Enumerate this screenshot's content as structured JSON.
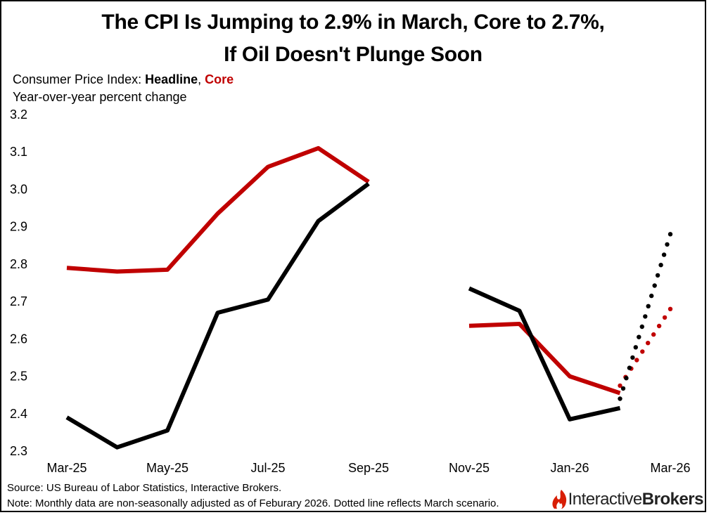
{
  "title_line1": "The CPI Is Jumping to 2.9% in March, Core to 2.7%,",
  "title_line2": "If Oil Doesn't Plunge Soon",
  "subtitle": {
    "prefix": "Consumer Price Index: ",
    "headline": "Headline",
    "comma": ", ",
    "core": "Core",
    "line2": "Year-over-year percent change"
  },
  "footer": {
    "source": "Source: US Bureau of Labor Statistics, Interactive Brokers.",
    "note": "Note: Monthly data are non-seasonally adjusted as of Feburary 2026. Dotted line reflects March scenario."
  },
  "logo": {
    "part1": "Interactive",
    "part2": "Brokers"
  },
  "colors": {
    "headline": "#000000",
    "core": "#c00000"
  },
  "chart_data": {
    "type": "line",
    "x": [
      "Mar-25",
      "Apr-25",
      "May-25",
      "Jun-25",
      "Jul-25",
      "Aug-25",
      "Sep-25",
      "Oct-25",
      "Nov-25",
      "Dec-25",
      "Jan-26",
      "Feb-26",
      "Mar-26"
    ],
    "x_tick_labels": [
      "Mar-25",
      "May-25",
      "Jul-25",
      "Sep-25",
      "Nov-25",
      "Jan-26",
      "Mar-26"
    ],
    "ylim": [
      2.3,
      3.2
    ],
    "y_ticks": [
      "2.3",
      "2.4",
      "2.5",
      "2.6",
      "2.7",
      "2.8",
      "2.9",
      "3.0",
      "3.1",
      "3.2"
    ],
    "grid": false,
    "series": [
      {
        "name": "Headline",
        "color": "#000000",
        "values": [
          2.39,
          2.31,
          2.355,
          2.67,
          2.705,
          2.915,
          3.015,
          null,
          2.735,
          2.675,
          2.385,
          2.415,
          null
        ],
        "scenario": [
          null,
          null,
          null,
          null,
          null,
          null,
          null,
          null,
          null,
          null,
          null,
          2.44,
          2.88
        ]
      },
      {
        "name": "Core",
        "color": "#c00000",
        "values": [
          2.79,
          2.78,
          2.785,
          2.935,
          3.06,
          3.11,
          3.02,
          null,
          2.635,
          2.64,
          2.5,
          2.455,
          null
        ],
        "scenario": [
          null,
          null,
          null,
          null,
          null,
          null,
          null,
          null,
          null,
          null,
          null,
          2.475,
          2.68
        ]
      }
    ]
  }
}
